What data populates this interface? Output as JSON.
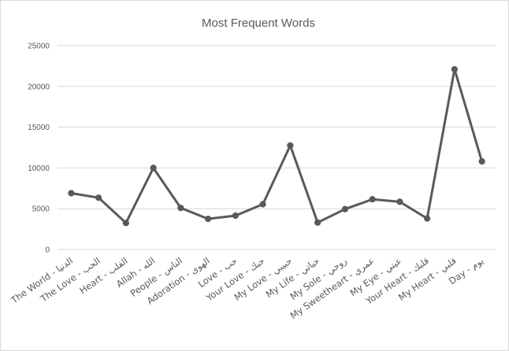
{
  "chart_data": {
    "type": "line",
    "title": "Most Frequent Words",
    "xlabel": "",
    "ylabel": "",
    "ylim": [
      0,
      25000
    ],
    "yticks": [
      0,
      5000,
      10000,
      15000,
      20000,
      25000
    ],
    "grid": true,
    "legend": "none",
    "categories": [
      "The World - الدنيا",
      "The Love - الحب",
      "Heart - القلب",
      "Allah - الله",
      "People - الناس",
      "Adoration - الهوى",
      "Love - حب",
      "Your Love - حبك",
      "My Love - حبيبي",
      "My Life - حياتي",
      "My Sole - روحي",
      "My Sweetheart - عمري",
      "My Eye - عيني",
      "Your Heart - قلبك",
      "My Heart - قلبي",
      "Day - يوم"
    ],
    "series": [
      {
        "color": "#595959",
        "values": [
          6900,
          6350,
          3250,
          10000,
          5100,
          3750,
          4150,
          5550,
          12750,
          3300,
          4950,
          6150,
          5850,
          3800,
          22100,
          10800
        ]
      }
    ]
  }
}
